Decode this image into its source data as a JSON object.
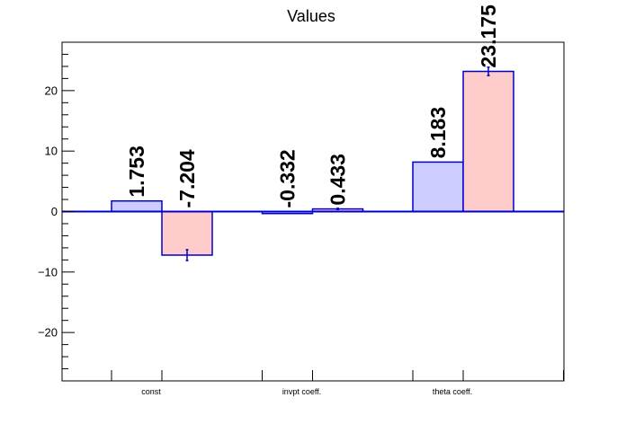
{
  "chart_data": {
    "type": "bar",
    "title": "Values",
    "xlabel": "",
    "ylabel": "",
    "categories": [
      "const",
      "invpt coeff.",
      "theta coeff."
    ],
    "series": [
      {
        "values": [
          1.753,
          -0.332,
          8.183
        ],
        "labels": [
          "1.753",
          "-0.332",
          "8.183"
        ],
        "errors": [
          0,
          0,
          0
        ],
        "fill": "#ccccff",
        "stroke": "#0000cc"
      },
      {
        "values": [
          -7.204,
          0.433,
          23.175
        ],
        "labels": [
          "-7.204",
          "0.433",
          "23.175"
        ],
        "errors": [
          0.9,
          0.1,
          0.7
        ],
        "fill": "#ffcccc",
        "stroke": "#0000cc"
      }
    ],
    "ylim": [
      -28,
      28
    ],
    "yticks": [
      -20,
      -10,
      0,
      10,
      20
    ],
    "ytick_labels": [
      "−20",
      "−10",
      "0",
      "10",
      "20"
    ],
    "grid": false,
    "legend": "none",
    "axis_color": "#000000",
    "zero_line_color": "#0000cc"
  }
}
